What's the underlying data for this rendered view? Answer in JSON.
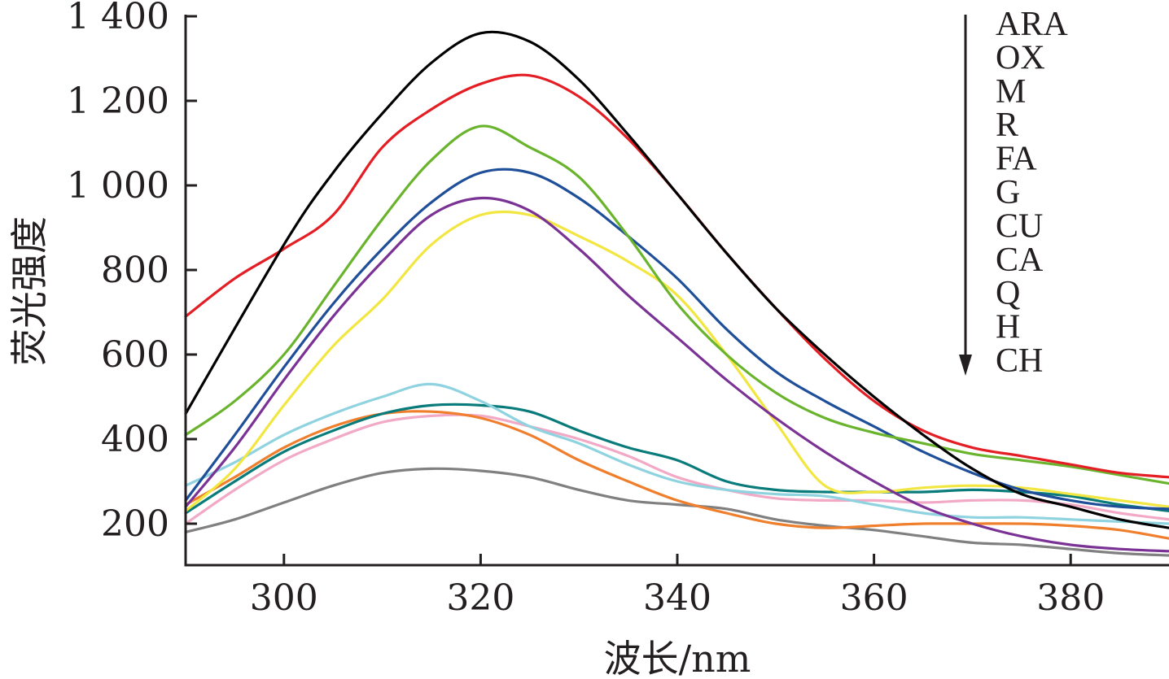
{
  "chart_data": {
    "type": "line",
    "title": "",
    "xlabel": "波长/nm",
    "ylabel": "荧光强度",
    "xlim": [
      290,
      390
    ],
    "ylim": [
      100,
      1400
    ],
    "x_ticks": [
      300,
      320,
      340,
      360,
      380
    ],
    "y_ticks": [
      200,
      400,
      600,
      800,
      1000,
      1200,
      1400
    ],
    "y_tick_labels": [
      "200",
      "400",
      "600",
      "800",
      "1 000",
      "1 200",
      "1 400"
    ],
    "x_tick_labels": [
      "300",
      "320",
      "340",
      "360",
      "380"
    ],
    "grid": false,
    "legend_position": "top-right",
    "legend_arrow": "down",
    "series": [
      {
        "name": "ARA",
        "color": "#000000",
        "x": [
          290,
          300,
          305,
          310,
          315,
          320,
          325,
          330,
          335,
          340,
          345,
          350,
          355,
          360,
          365,
          370,
          375,
          380,
          385,
          390
        ],
        "y": [
          460,
          860,
          1030,
          1170,
          1290,
          1360,
          1340,
          1250,
          1120,
          980,
          840,
          710,
          600,
          500,
          410,
          330,
          270,
          240,
          210,
          190
        ]
      },
      {
        "name": "OX",
        "color": "#e31e25",
        "x": [
          290,
          295,
          300,
          305,
          310,
          315,
          320,
          325,
          330,
          335,
          340,
          345,
          350,
          355,
          360,
          365,
          370,
          375,
          380,
          385,
          390
        ],
        "y": [
          690,
          780,
          850,
          930,
          1090,
          1180,
          1240,
          1260,
          1210,
          1110,
          980,
          840,
          710,
          590,
          490,
          420,
          380,
          360,
          340,
          320,
          310
        ]
      },
      {
        "name": "M",
        "color": "#6ab42d",
        "x": [
          290,
          295,
          300,
          305,
          310,
          315,
          320,
          325,
          330,
          335,
          340,
          345,
          350,
          355,
          360,
          365,
          370,
          375,
          380,
          385,
          390
        ],
        "y": [
          410,
          490,
          600,
          760,
          920,
          1060,
          1140,
          1090,
          1020,
          880,
          720,
          600,
          510,
          450,
          415,
          390,
          365,
          350,
          335,
          315,
          295
        ]
      },
      {
        "name": "R",
        "color": "#1f4f99",
        "x": [
          290,
          295,
          300,
          305,
          310,
          315,
          320,
          325,
          330,
          335,
          340,
          345,
          350,
          355,
          360,
          365,
          370,
          375,
          380,
          385,
          390
        ],
        "y": [
          255,
          410,
          570,
          720,
          850,
          960,
          1030,
          1030,
          970,
          880,
          780,
          660,
          560,
          490,
          430,
          370,
          320,
          280,
          255,
          240,
          235
        ]
      },
      {
        "name": "FA",
        "color": "#7b3295",
        "x": [
          290,
          295,
          300,
          305,
          310,
          315,
          320,
          325,
          330,
          335,
          340,
          345,
          350,
          355,
          360,
          365,
          370,
          375,
          380,
          385,
          390
        ],
        "y": [
          240,
          380,
          540,
          690,
          820,
          930,
          970,
          940,
          850,
          740,
          640,
          540,
          450,
          370,
          300,
          240,
          200,
          170,
          150,
          140,
          135
        ]
      },
      {
        "name": "G",
        "color": "#f2e640",
        "x": [
          290,
          295,
          300,
          305,
          310,
          315,
          320,
          325,
          330,
          335,
          340,
          345,
          350,
          355,
          360,
          365,
          370,
          375,
          380,
          385,
          390
        ],
        "y": [
          230,
          330,
          480,
          620,
          730,
          860,
          930,
          930,
          880,
          820,
          740,
          600,
          440,
          290,
          275,
          285,
          290,
          285,
          270,
          255,
          240
        ]
      },
      {
        "name": "CU",
        "color": "#8ed3df",
        "x": [
          290,
          295,
          300,
          305,
          310,
          315,
          320,
          325,
          330,
          335,
          340,
          345,
          350,
          355,
          360,
          365,
          370,
          375,
          380,
          385,
          390
        ],
        "y": [
          290,
          345,
          410,
          460,
          500,
          530,
          490,
          430,
          390,
          340,
          300,
          280,
          270,
          265,
          245,
          225,
          215,
          215,
          210,
          205,
          200
        ]
      },
      {
        "name": "CA",
        "color": "#0a7b7b",
        "x": [
          290,
          295,
          300,
          305,
          310,
          315,
          320,
          325,
          330,
          335,
          340,
          345,
          350,
          355,
          360,
          365,
          370,
          375,
          380,
          385,
          390
        ],
        "y": [
          225,
          300,
          370,
          420,
          460,
          480,
          480,
          465,
          420,
          380,
          350,
          300,
          280,
          275,
          275,
          275,
          280,
          275,
          265,
          245,
          230
        ]
      },
      {
        "name": "Q",
        "color": "#f07f2d",
        "x": [
          290,
          295,
          300,
          305,
          310,
          315,
          320,
          325,
          330,
          335,
          340,
          345,
          350,
          355,
          360,
          365,
          370,
          375,
          380,
          385,
          390
        ],
        "y": [
          245,
          310,
          380,
          430,
          460,
          465,
          450,
          410,
          350,
          300,
          255,
          225,
          200,
          190,
          195,
          200,
          200,
          200,
          195,
          185,
          165
        ]
      },
      {
        "name": "H",
        "color": "#f2a9c6",
        "x": [
          290,
          295,
          300,
          305,
          310,
          315,
          320,
          325,
          330,
          335,
          340,
          345,
          350,
          355,
          360,
          365,
          370,
          375,
          380,
          385,
          390
        ],
        "y": [
          200,
          280,
          350,
          400,
          440,
          455,
          455,
          430,
          400,
          360,
          310,
          280,
          260,
          255,
          255,
          250,
          255,
          255,
          245,
          225,
          210
        ]
      },
      {
        "name": "CH",
        "color": "#808080",
        "x": [
          290,
          295,
          300,
          305,
          310,
          315,
          320,
          325,
          330,
          335,
          340,
          345,
          350,
          355,
          360,
          365,
          370,
          375,
          380,
          385,
          390
        ],
        "y": [
          180,
          210,
          250,
          290,
          320,
          330,
          325,
          310,
          280,
          255,
          245,
          235,
          210,
          195,
          185,
          170,
          155,
          150,
          140,
          130,
          125
        ]
      }
    ]
  }
}
